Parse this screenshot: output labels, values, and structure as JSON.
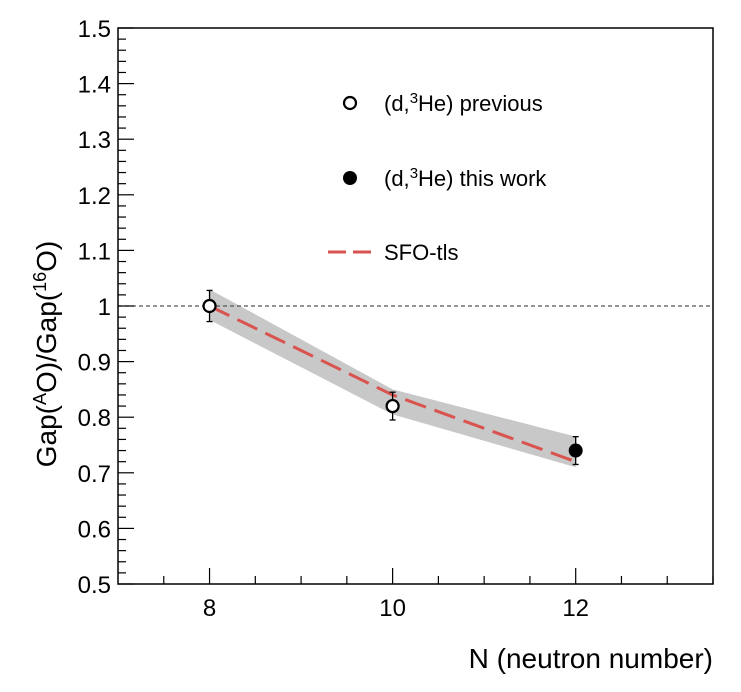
{
  "chart_data": {
    "type": "scatter",
    "xlabel": "N (neutron number)",
    "ylabel": {
      "base1": "Gap(",
      "sup1": "A",
      "mid": "O)/Gap(",
      "sup2": "16",
      "end": "O)"
    },
    "xlim": [
      7,
      13.5
    ],
    "ylim": [
      0.5,
      1.5
    ],
    "x_ticks": [
      "8",
      "10",
      "12"
    ],
    "y_ticks": [
      "0.5",
      "0.6",
      "0.7",
      "0.8",
      "0.9",
      "1",
      "1.1",
      "1.2",
      "1.3",
      "1.4",
      "1.5"
    ],
    "reference_line": 1.0,
    "band": {
      "x": [
        8,
        10,
        12
      ],
      "low": [
        0.975,
        0.805,
        0.71
      ],
      "high": [
        1.03,
        0.85,
        0.765
      ]
    },
    "series": [
      {
        "name": {
          "pre": "(d,",
          "sup": "3",
          "post": "He) previous"
        },
        "marker": "open-circle",
        "x": [
          8,
          10
        ],
        "y": [
          1.0,
          0.82
        ],
        "err": [
          0.028,
          0.025
        ]
      },
      {
        "name": {
          "pre": "(d,",
          "sup": "3",
          "post": "He) this work"
        },
        "marker": "filled-circle",
        "x": [
          12
        ],
        "y": [
          0.74
        ],
        "err": [
          0.025
        ]
      },
      {
        "name": "SFO-tls",
        "marker": "dashed-line",
        "color": "#d9534f",
        "x": [
          8,
          10,
          12
        ],
        "y": [
          1.0,
          0.84,
          0.72
        ]
      }
    ],
    "grid": false,
    "legend_position": "top-right",
    "colors": {
      "band": "#c8c8c8",
      "model": "#d9534f",
      "axis": "#000000",
      "reference": "#555555"
    }
  }
}
